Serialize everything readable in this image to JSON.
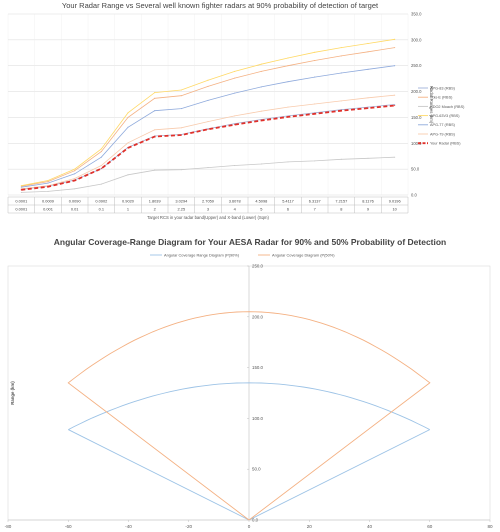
{
  "chart_data": [
    {
      "type": "line",
      "title": "Your Radar Range vs Several well known fighter radars at 90% probability of detection of target",
      "xlabel": "Target RCS in your radar band(Upper) and X-band (Lower) (Sqm)",
      "ylabel": "Radar Ranges (km)",
      "ylim": [
        0,
        350
      ],
      "yticks": [
        "0.0",
        "50.0",
        "100.0",
        "150.0",
        "200.0",
        "250.0",
        "300.0",
        "350.0"
      ],
      "x_upper": [
        "0.0001",
        "0.0009",
        "0.0090",
        "0.0902",
        "0.9020",
        "1.8039",
        "3.0294",
        "2.7059",
        "3.6078",
        "4.5098",
        "5.4117",
        "6.3137",
        "7.2157",
        "8.1176",
        "9.0196"
      ],
      "x_lower": [
        "0.0001",
        "0.001",
        "0.01",
        "0.1",
        "1",
        "2",
        "2.25",
        "3",
        "4",
        "5",
        "6",
        "7",
        "8",
        "9",
        "10"
      ],
      "legend_position": "right",
      "series": [
        {
          "name": "APG-83 (RBS)",
          "color": "#9fb0d8",
          "values": [
            11,
            17,
            29,
            51,
            92,
            114,
            117,
            128,
            138,
            146,
            153,
            159,
            165,
            170,
            175
          ]
        },
        {
          "name": "Irbis-E (RBS)",
          "color": "#f4b183",
          "values": [
            17,
            26,
            47,
            84,
            150,
            187,
            192,
            210,
            226,
            239,
            250,
            260,
            269,
            277,
            285
          ]
        },
        {
          "name": "RDO2 Moach (RBS)",
          "color": "#c8c8c8",
          "values": [
            5,
            7,
            12,
            21,
            39,
            48,
            49,
            53,
            57,
            60,
            64,
            66,
            69,
            71,
            73
          ]
        },
        {
          "name": "APG-63V3 (RBS)",
          "color": "#ffd966",
          "values": [
            18,
            28,
            50,
            89,
            159,
            198,
            203,
            222,
            239,
            253,
            265,
            276,
            285,
            293,
            301
          ]
        },
        {
          "name": "APG-77 (RBS)",
          "color": "#8faadc",
          "values": [
            15,
            23,
            41,
            73,
            131,
            163,
            167,
            183,
            197,
            209,
            219,
            228,
            236,
            243,
            250
          ]
        },
        {
          "name": "APG-79 (RBS)",
          "color": "#f8cbad",
          "values": [
            12,
            18,
            32,
            57,
            101,
            126,
            130,
            142,
            153,
            162,
            170,
            176,
            182,
            188,
            193
          ]
        },
        {
          "name": "Your Radar (RBS)",
          "color": "#e0302a",
          "values": [
            10,
            16,
            28,
            51,
            91,
            113,
            116,
            127,
            136,
            144,
            151,
            157,
            163,
            168,
            173
          ]
        }
      ]
    },
    {
      "type": "line",
      "title": "Angular Coverage-Range Diagram  for Your AESA Radar for 90% and 50% Probability  of Detection",
      "xlabel": "",
      "ylabel": "Range (km)",
      "xlim": [
        -80,
        80
      ],
      "ylim": [
        0,
        250
      ],
      "xticks": [
        "-80",
        "-60",
        "-40",
        "-20",
        "0",
        "20",
        "40",
        "60",
        "80"
      ],
      "yticks": [
        "0.0",
        "50.0",
        "100.0",
        "150.0",
        "200.0",
        "250.0"
      ],
      "legend_position": "top",
      "series": [
        {
          "name": "Angular Coverage Range Diagram (P(90%)",
          "color": "#9dc3e6",
          "range_at_boresight": 135,
          "range_at_edge": 89,
          "scan_half_angle_deg": 60
        },
        {
          "name": "Angular Coverage Diagram (P(50%)",
          "color": "#f4b183",
          "range_at_boresight": 205,
          "range_at_edge": 135,
          "scan_half_angle_deg": 60
        }
      ]
    }
  ]
}
